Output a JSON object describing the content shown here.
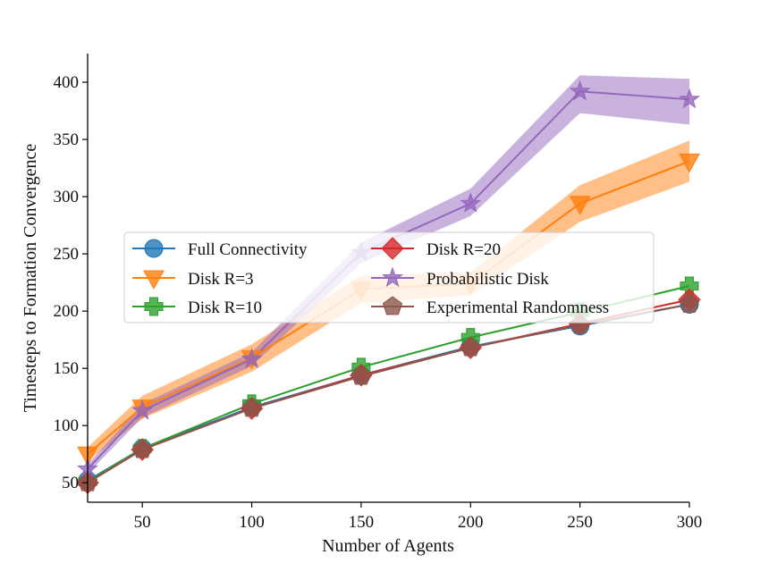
{
  "chart_data": {
    "type": "line",
    "title": "",
    "xlabel": "Number of Agents",
    "ylabel": "Timesteps to Formation Convergence",
    "x": [
      25,
      50,
      100,
      150,
      200,
      250,
      300
    ],
    "xlim": [
      25,
      300
    ],
    "ylim": [
      33,
      425
    ],
    "xticks": [
      50,
      100,
      150,
      200,
      250,
      300
    ],
    "yticks": [
      50,
      100,
      150,
      200,
      250,
      300,
      350,
      400
    ],
    "legend_position": "center-left",
    "series": [
      {
        "name": "Full Connectivity",
        "color": "#1f77b4",
        "marker": "circle",
        "values": [
          52,
          80,
          116,
          144,
          169,
          187,
          206
        ],
        "lower": [
          52,
          80,
          116,
          144,
          169,
          187,
          206
        ],
        "upper": [
          52,
          80,
          116,
          144,
          169,
          187,
          206
        ]
      },
      {
        "name": "Disk R=3",
        "color": "#ff7f0e",
        "marker": "triangle-down",
        "values": [
          75,
          116,
          159,
          219,
          224,
          294,
          331
        ],
        "lower": [
          69,
          106,
          147,
          207,
          214,
          278,
          313
        ],
        "upper": [
          81,
          126,
          171,
          231,
          234,
          310,
          349
        ]
      },
      {
        "name": "Disk R=10",
        "color": "#2ca02c",
        "marker": "plus",
        "values": [
          51,
          80,
          119,
          151,
          177,
          199,
          222
        ],
        "lower": [
          51,
          80,
          119,
          151,
          177,
          199,
          222
        ],
        "upper": [
          51,
          80,
          119,
          151,
          177,
          199,
          222
        ]
      },
      {
        "name": "Disk R=20",
        "color": "#d62728",
        "marker": "diamond",
        "values": [
          50,
          79,
          115,
          144,
          168,
          189,
          210
        ],
        "lower": [
          50,
          79,
          115,
          144,
          168,
          189,
          210
        ],
        "upper": [
          50,
          79,
          115,
          144,
          168,
          189,
          210
        ]
      },
      {
        "name": "Probabilistic Disk",
        "color": "#9467bd",
        "marker": "star",
        "values": [
          62,
          113,
          158,
          251,
          294,
          392,
          385
        ],
        "lower": [
          58,
          107,
          152,
          242,
          283,
          373,
          363
        ],
        "upper": [
          66,
          119,
          164,
          260,
          307,
          406,
          403
        ]
      },
      {
        "name": "Experimental Randomness",
        "color": "#8c564b",
        "marker": "pentagon",
        "values": [
          50,
          79,
          115,
          143,
          168,
          188,
          206
        ],
        "lower": [
          50,
          79,
          115,
          143,
          168,
          188,
          206
        ],
        "upper": [
          50,
          79,
          115,
          143,
          168,
          188,
          206
        ]
      }
    ]
  }
}
